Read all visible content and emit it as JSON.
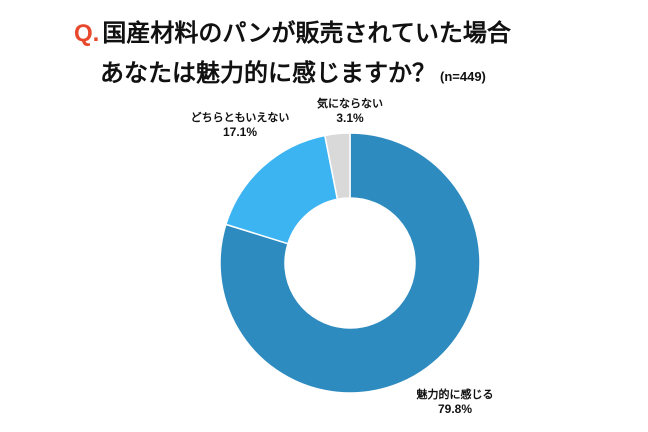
{
  "title": {
    "marker": "Q.",
    "line1": "国産材料のパンが販売されていた場合",
    "line2": "あなたは魅力的に感じますか？",
    "sample_size": "(n=449)"
  },
  "chart_data": {
    "type": "pie",
    "donut": true,
    "categories": [
      "魅力的に感じる",
      "どちらともいえない",
      "気にならない"
    ],
    "values": [
      79.8,
      17.1,
      3.1
    ],
    "value_labels": [
      "79.8%",
      "17.1%",
      "3.1%"
    ],
    "colors": [
      "#2e8bbf",
      "#3db4f2",
      "#d9d9d9"
    ],
    "start_angle_deg": 0,
    "direction": "clockwise",
    "legend": "none"
  }
}
